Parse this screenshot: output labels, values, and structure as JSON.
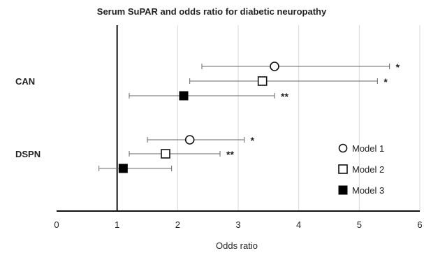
{
  "chart_data": {
    "type": "forest",
    "title": "Serum SuPAR and odds ratio for diabetic neuropathy",
    "xlabel": "Odds ratio",
    "xlim": [
      0,
      6
    ],
    "xticks": [
      "0",
      "1",
      "2",
      "3",
      "4",
      "5",
      "6"
    ],
    "reference_line": 1,
    "grid": "vertical",
    "legend_position": "bottom-right",
    "categories": [
      "CAN",
      "DSPN"
    ],
    "series": [
      {
        "name": "Model 1",
        "marker": "open-circle",
        "points": [
          {
            "category": "CAN",
            "or": 3.6,
            "low": 2.4,
            "high": 5.5,
            "sig": "*"
          },
          {
            "category": "DSPN",
            "or": 2.2,
            "low": 1.5,
            "high": 3.1,
            "sig": "*"
          }
        ]
      },
      {
        "name": "Model 2",
        "marker": "open-square",
        "points": [
          {
            "category": "CAN",
            "or": 3.4,
            "low": 2.2,
            "high": 5.3,
            "sig": "*"
          },
          {
            "category": "DSPN",
            "or": 1.8,
            "low": 1.2,
            "high": 2.7,
            "sig": "**"
          }
        ]
      },
      {
        "name": "Model 3",
        "marker": "filled-square",
        "points": [
          {
            "category": "CAN",
            "or": 2.1,
            "low": 1.2,
            "high": 3.6,
            "sig": "**"
          },
          {
            "category": "DSPN",
            "or": 1.1,
            "low": 0.7,
            "high": 1.9,
            "sig": ""
          }
        ]
      }
    ]
  }
}
